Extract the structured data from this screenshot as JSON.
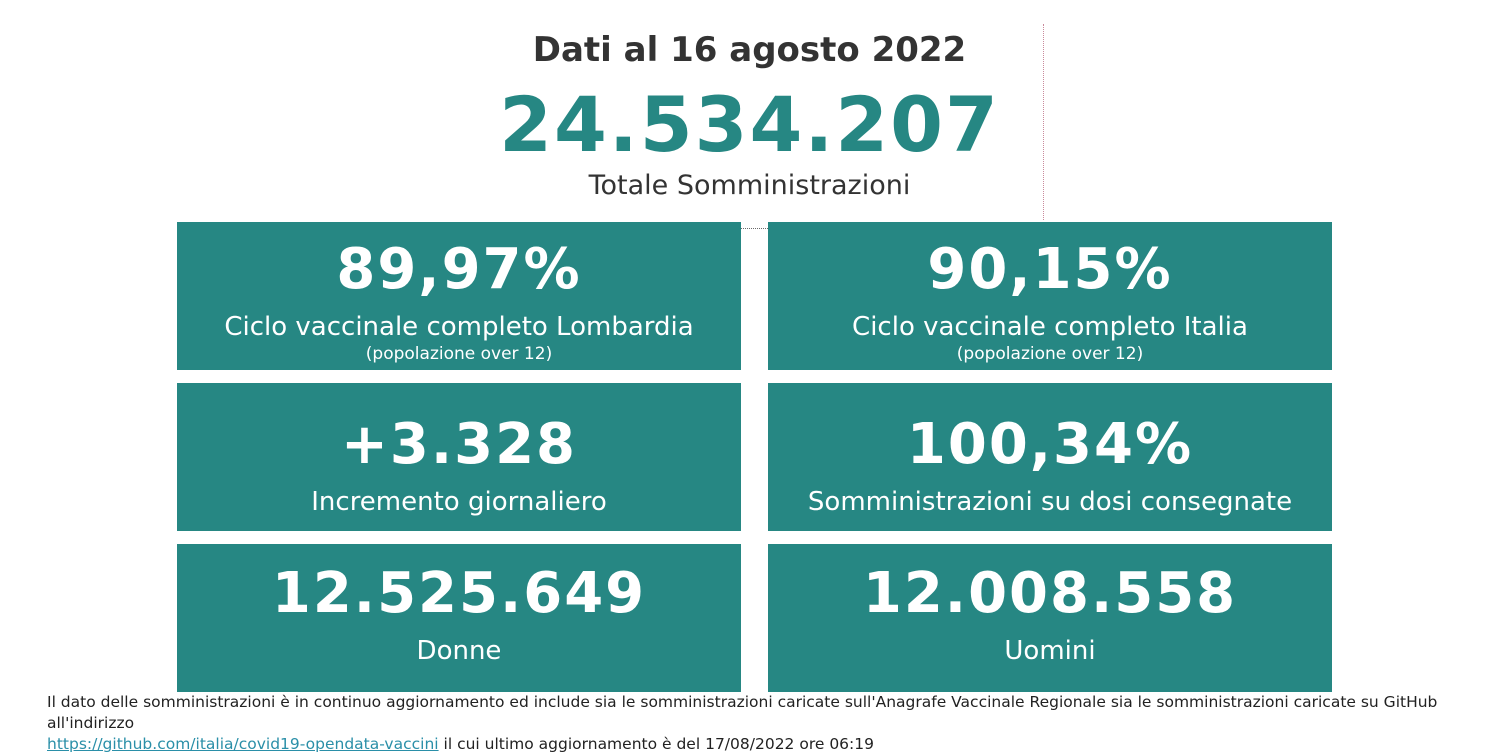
{
  "header": {
    "date_title": "Dati al 16 agosto 2022",
    "total_value": "24.534.207",
    "total_label": "Totale Somministrazioni"
  },
  "cards": {
    "lombardia": {
      "value": "89,97%",
      "label": "Ciclo vaccinale completo Lombardia",
      "sub": "(popolazione over 12)"
    },
    "italia": {
      "value": "90,15%",
      "label": "Ciclo vaccinale completo Italia",
      "sub": "(popolazione over 12)"
    },
    "incremento": {
      "value": "+3.328",
      "label": "Incremento giornaliero"
    },
    "dosi": {
      "value": "100,34%",
      "label": "Somministrazioni su dosi consegnate"
    },
    "donne": {
      "value": "12.525.649",
      "label": "Donne"
    },
    "uomini": {
      "value": "12.008.558",
      "label": "Uomini"
    }
  },
  "footnote": {
    "text_before": "Il dato delle somministrazioni è in continuo aggiornamento ed include sia le somministrazioni caricate sull'Anagrafe Vaccinale Regionale sia le somministrazioni caricate su GitHub all'indirizzo",
    "link_text": "https://github.com/italia/covid19-opendata-vaccini",
    "text_after": "il cui ultimo aggiornamento è del 17/08/2022 ore 06:19"
  },
  "colors": {
    "accent": "#268783",
    "text": "#333333",
    "link": "#2a8fa8"
  }
}
